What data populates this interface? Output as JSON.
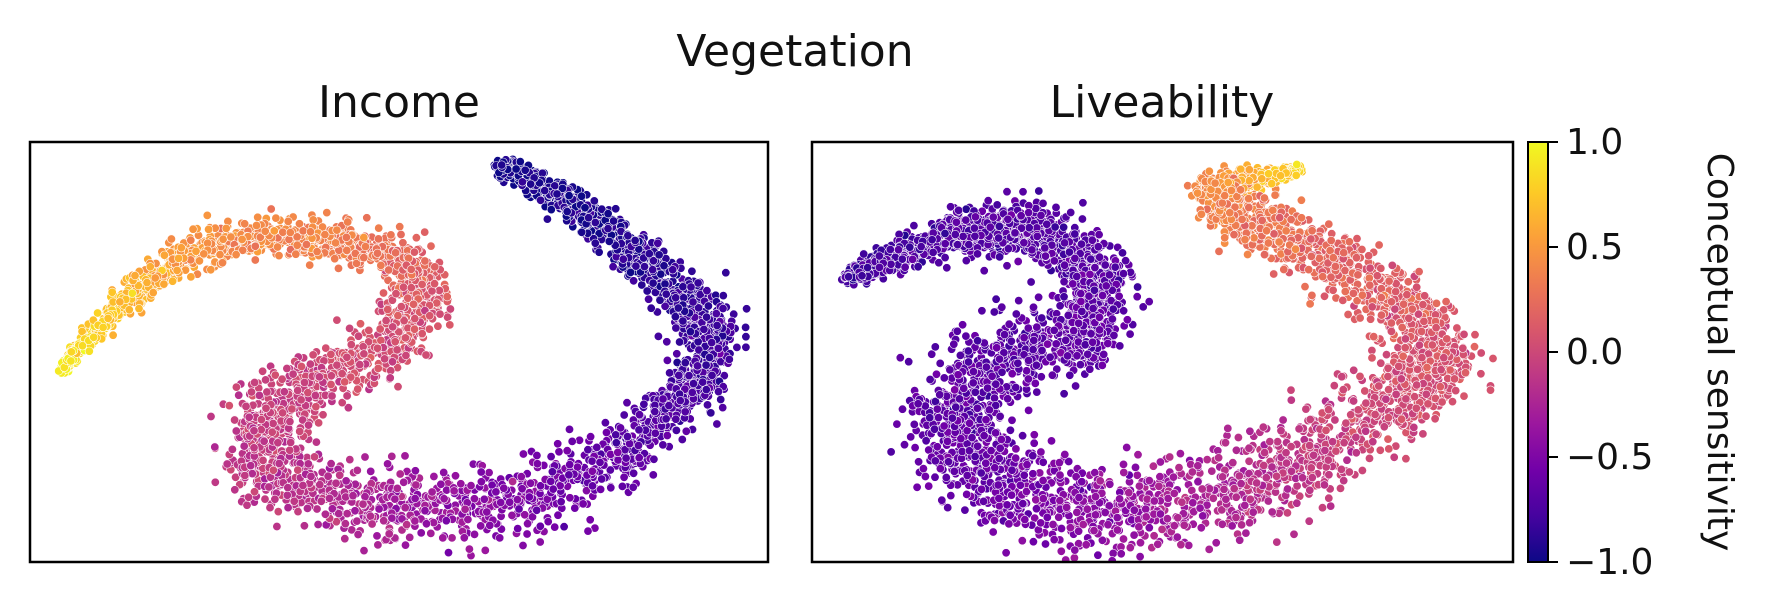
{
  "figure": {
    "suptitle": "Vegetation"
  },
  "chart_data": [
    {
      "type": "scatter",
      "title": "Income",
      "xlabel": "",
      "ylabel": "",
      "x_ticks": "none",
      "y_ticks": "none",
      "color_scale": "plasma",
      "shape": "S-shaped point cloud (t-SNE style embedding)",
      "color_gradient": "high (~0.9) at upper-left tail, ~0.4 along top arm, ~0.0 middle and lower arm, ~-0.7 on right arm, ~-0.9 at upper-right tip"
    },
    {
      "type": "scatter",
      "title": "Liveability",
      "xlabel": "",
      "ylabel": "",
      "x_ticks": "none",
      "y_ticks": "none",
      "color_scale": "plasma",
      "shape": "wave/comma-shaped point cloud",
      "color_gradient": "~-0.7 left and bottom mass, ~-0.2 lower right, ~0.2 upper-right lobe, ~0.5 to 0.9 at top-right tip"
    }
  ],
  "colorbar": {
    "label": "Conceptual sensitivity",
    "range": [
      -1.0,
      1.0
    ],
    "ticks": [
      "1.0",
      "0.5",
      "0.0",
      "−0.5",
      "−1.0"
    ],
    "colormap": "plasma",
    "colors": [
      "#0d0887",
      "#46039f",
      "#7201a8",
      "#9c179e",
      "#bd3786",
      "#d8576b",
      "#ed7953",
      "#fb9f3a",
      "#fdca26",
      "#f0f921"
    ]
  }
}
